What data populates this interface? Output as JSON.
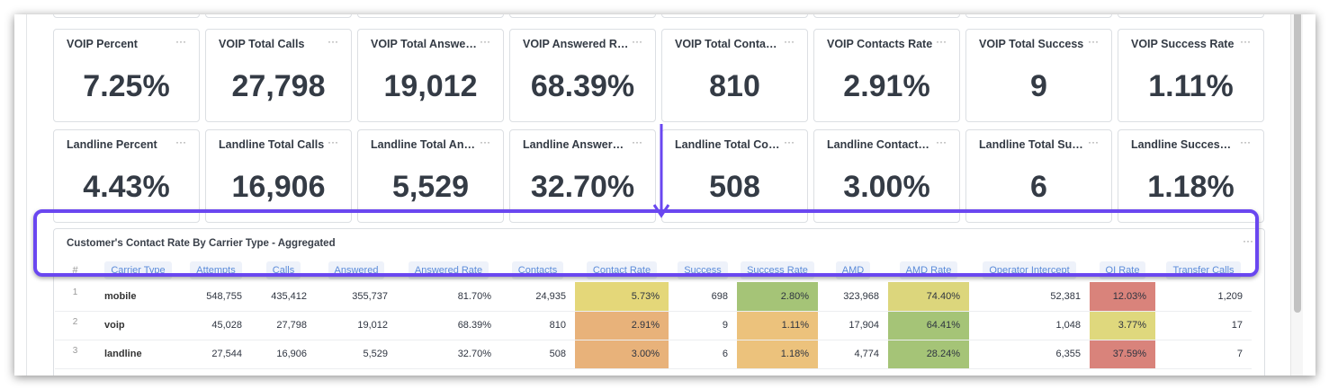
{
  "voip_cards": [
    {
      "title": "VOIP Percent",
      "value": "7.25%"
    },
    {
      "title": "VOIP Total Calls",
      "value": "27,798"
    },
    {
      "title": "VOIP Total Answered",
      "value": "19,012"
    },
    {
      "title": "VOIP Answered Rate",
      "value": "68.39%"
    },
    {
      "title": "VOIP Total Contacts",
      "value": "810"
    },
    {
      "title": "VOIP Contacts Rate",
      "value": "2.91%"
    },
    {
      "title": "VOIP Total Success",
      "value": "9"
    },
    {
      "title": "VOIP Success Rate",
      "value": "1.11%"
    }
  ],
  "landline_cards": [
    {
      "title": "Landline Percent",
      "value": "4.43%"
    },
    {
      "title": "Landline Total Calls",
      "value": "16,906"
    },
    {
      "title": "Landline Total Answered",
      "value": "5,529"
    },
    {
      "title": "Landline Answered Rate",
      "value": "32.70%"
    },
    {
      "title": "Landline Total Contacts",
      "value": "508"
    },
    {
      "title": "Landline Contacts Rate",
      "value": "3.00%"
    },
    {
      "title": "Landline Total Success",
      "value": "6"
    },
    {
      "title": "Landline Success Rate",
      "value": "1.18%"
    }
  ],
  "card_menu": "···",
  "table": {
    "title": "Customer's Contact Rate By Carrier Type - Aggregated",
    "menu": "···",
    "columns": [
      "#",
      "Carrier Type",
      "Attempts",
      "Calls",
      "Answered",
      "Answered Rate",
      "Contacts",
      "Contact Rate",
      "Success",
      "Success Rate",
      "AMD",
      "AMD Rate",
      "Operator Intercept",
      "OI Rate",
      "Transfer Calls"
    ],
    "rows": [
      [
        "1",
        "mobile",
        "548,755",
        "435,412",
        "355,737",
        "81.70%",
        "24,935",
        "5.73%",
        "698",
        "2.80%",
        "323,968",
        "74.40%",
        "52,381",
        "12.03%",
        "1,209"
      ],
      [
        "2",
        "voip",
        "45,028",
        "27,798",
        "19,012",
        "68.39%",
        "810",
        "2.91%",
        "9",
        "1.11%",
        "17,904",
        "64.41%",
        "1,048",
        "3.77%",
        "17"
      ],
      [
        "3",
        "landline",
        "27,544",
        "16,906",
        "5,529",
        "32.70%",
        "508",
        "3.00%",
        "6",
        "1.18%",
        "4,774",
        "28.24%",
        "6,355",
        "37.59%",
        "7"
      ]
    ],
    "cell_colors": {
      "7": [
        "#e4d779",
        "#e8b27a",
        "#e8b27a"
      ],
      "9": [
        "#a5c477",
        "#ecc27c",
        "#ecc27c"
      ],
      "11": [
        "#dcd67c",
        "#a5c477",
        "#a5c477"
      ],
      "13": [
        "#d9837b",
        "#dfd87d",
        "#d9837b"
      ]
    }
  },
  "highlight_color": "#6a47f0"
}
